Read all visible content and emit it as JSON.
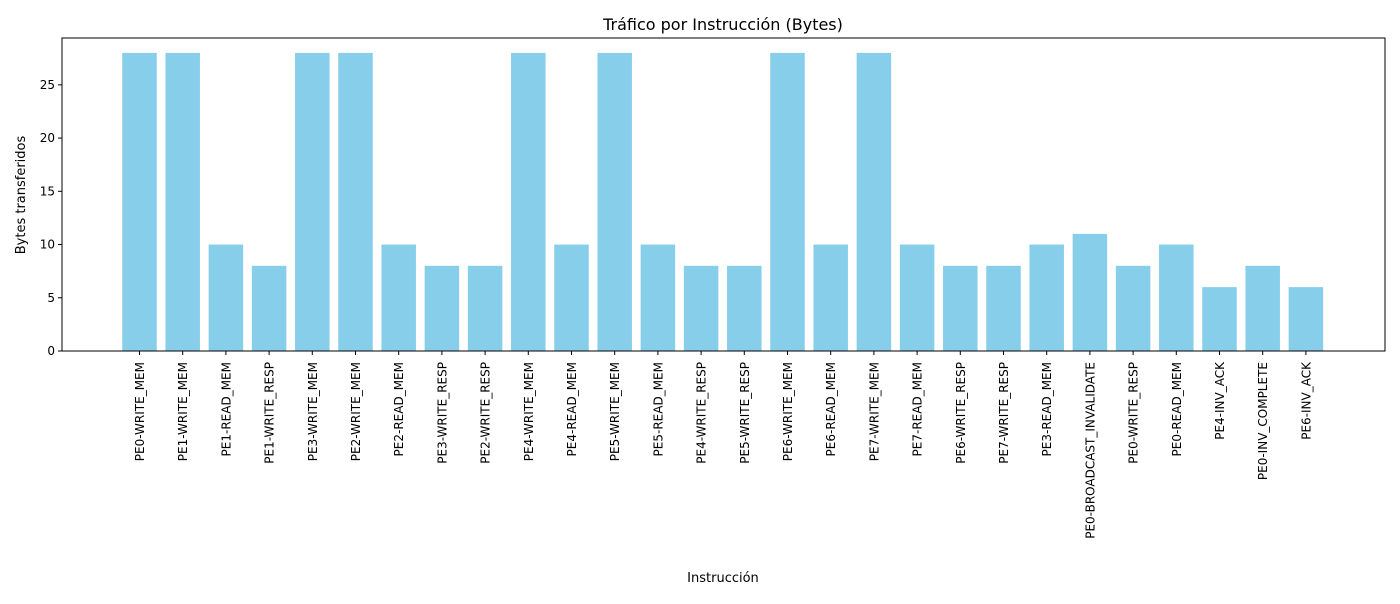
{
  "chart_data": {
    "type": "bar",
    "title": "Tráfico por Instrucción (Bytes)",
    "xlabel": "Instrucción",
    "ylabel": "Bytes transferidos",
    "ylim": [
      0,
      29.4
    ],
    "yticks": [
      0,
      5,
      10,
      15,
      20,
      25
    ],
    "grid": false,
    "legend": "none",
    "bar_color": "#87CEEB",
    "categories": [
      "PE0-WRITE_MEM",
      "PE1-WRITE_MEM",
      "PE1-READ_MEM",
      "PE1-WRITE_RESP",
      "PE3-WRITE_MEM",
      "PE2-WRITE_MEM",
      "PE2-READ_MEM",
      "PE3-WRITE_RESP",
      "PE2-WRITE_RESP",
      "PE4-WRITE_MEM",
      "PE4-READ_MEM",
      "PE5-WRITE_MEM",
      "PE5-READ_MEM",
      "PE4-WRITE_RESP",
      "PE5-WRITE_RESP",
      "PE6-WRITE_MEM",
      "PE6-READ_MEM",
      "PE7-WRITE_MEM",
      "PE7-READ_MEM",
      "PE6-WRITE_RESP",
      "PE7-WRITE_RESP",
      "PE3-READ_MEM",
      "PE0-BROADCAST_INVALIDATE",
      "PE0-WRITE_RESP",
      "PE0-READ_MEM",
      "PE4-INV_ACK",
      "PE0-INV_COMPLETE",
      "PE6-INV_ACK"
    ],
    "values": [
      28,
      28,
      10,
      8,
      28,
      28,
      10,
      8,
      8,
      28,
      10,
      28,
      10,
      8,
      8,
      28,
      10,
      28,
      10,
      8,
      8,
      10,
      11,
      8,
      10,
      6,
      8,
      6
    ]
  }
}
